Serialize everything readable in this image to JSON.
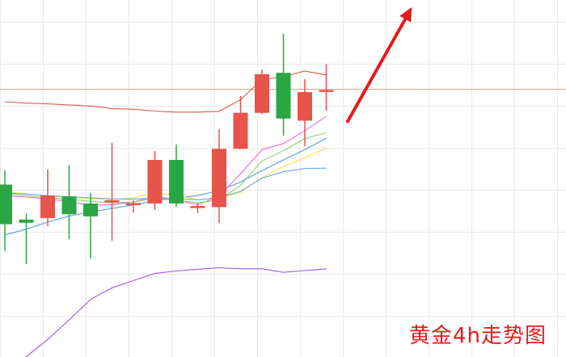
{
  "caption": "黄金4h走势图",
  "colors": {
    "up": "#e8534a",
    "down": "#2ba645",
    "arrow": "#e8191c",
    "grid": "#e9e9e9",
    "price_line": "#f0a58f",
    "boll_upper": "#d9584f",
    "boll_lower": "#9b59e0",
    "ma_blue": "#5b9bd5",
    "ma_pink": "#e86ad1",
    "ma_green": "#8fd16a",
    "ma_yellow": "#f2e14a",
    "ma_lightblue": "#6aa8f0",
    "ma_purple": "#b39ddb"
  },
  "chart_data": {
    "type": "candlestick",
    "title": "",
    "xlabel": "",
    "ylabel": "",
    "grid": true,
    "ylim": [
      0,
      100
    ],
    "candles": [
      {
        "open": 48.3,
        "close": 37.2,
        "high": 52.3,
        "low": 29.7
      },
      {
        "open": 38.5,
        "close": 37.6,
        "high": 40.3,
        "low": 26.0
      },
      {
        "open": 38.9,
        "close": 45.2,
        "high": 52.5,
        "low": 36.7
      },
      {
        "open": 45.0,
        "close": 40.0,
        "high": 53.6,
        "low": 33.0
      },
      {
        "open": 43.0,
        "close": 39.4,
        "high": 45.9,
        "low": 27.6
      },
      {
        "open": 43.7,
        "close": 43.9,
        "high": 60.0,
        "low": 32.6
      },
      {
        "open": 43.0,
        "close": 43.1,
        "high": 43.9,
        "low": 40.5
      },
      {
        "open": 43.0,
        "close": 55.2,
        "high": 57.7,
        "low": 41.2
      },
      {
        "open": 55.2,
        "close": 43.0,
        "high": 59.5,
        "low": 42.0
      },
      {
        "open": 42.3,
        "close": 42.3,
        "high": 43.2,
        "low": 40.3
      },
      {
        "open": 42.0,
        "close": 58.3,
        "high": 63.8,
        "low": 37.5
      },
      {
        "open": 58.3,
        "close": 68.4,
        "high": 73.1,
        "low": 58.3
      },
      {
        "open": 68.4,
        "close": 79.2,
        "high": 80.5,
        "low": 68.0
      },
      {
        "open": 79.6,
        "close": 66.8,
        "high": 90.5,
        "low": 62.0
      },
      {
        "open": 66.2,
        "close": 74.2,
        "high": 77.8,
        "low": 59.0
      },
      {
        "open": 74.8,
        "close": 74.8,
        "high": 82.0,
        "low": 69.0
      }
    ],
    "price_line": 75.0,
    "series": [
      {
        "key": "boll_upper",
        "values": [
          71.5,
          71.1,
          70.9,
          70.6,
          70.3,
          69.6,
          69.4,
          68.9,
          68.6,
          68.6,
          68.8,
          72.1,
          77.7,
          78.5,
          80.1,
          79.0
        ]
      },
      {
        "key": "boll_lower",
        "values": [
          -5.0,
          0.1,
          4.9,
          10.4,
          16.1,
          19.4,
          21.4,
          23.4,
          24.1,
          24.6,
          25.0,
          24.7,
          24.7,
          23.7,
          24.2,
          24.7
        ]
      },
      {
        "key": "ma_blue",
        "values": [
          34.2,
          35.8,
          37.8,
          39.5,
          40.6,
          41.6,
          42.6,
          43.8,
          44.5,
          45.2,
          46.6,
          49.0,
          52.2,
          55.2,
          58.1,
          61.3
        ]
      },
      {
        "key": "ma_pink",
        "values": [
          45.2,
          44.8,
          44.3,
          43.5,
          42.5,
          42.7,
          43.4,
          45.1,
          44.0,
          42.6,
          45.1,
          51.3,
          58.1,
          59.8,
          63.4,
          67.4
        ]
      },
      {
        "key": "ma_green",
        "values": [
          45.7,
          45.2,
          44.6,
          44.2,
          43.6,
          43.2,
          43.4,
          44.5,
          43.9,
          43.2,
          44.0,
          48.1,
          54.9,
          57.8,
          61.2,
          62.8
        ]
      },
      {
        "key": "ma_yellow",
        "values": [
          46.3,
          45.7,
          45.0,
          44.8,
          44.3,
          44.1,
          44.6,
          46.1,
          45.2,
          44.1,
          44.6,
          46.1,
          50.2,
          53.4,
          55.8,
          58.5
        ]
      },
      {
        "key": "ma_lightblue",
        "values": [
          46.0,
          45.6,
          45.2,
          44.9,
          44.6,
          44.3,
          44.2,
          44.5,
          44.4,
          44.0,
          44.7,
          46.4,
          50.1,
          51.9,
          52.8,
          52.9
        ]
      }
    ],
    "annotations": [
      {
        "type": "arrow",
        "direction": "up",
        "from": {
          "index": 16,
          "value": 66
        },
        "to": {
          "index": 19,
          "value": 98
        }
      }
    ]
  }
}
